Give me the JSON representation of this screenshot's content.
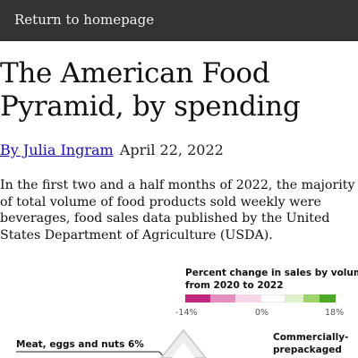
{
  "nav": {
    "return_label": "Return to homepage"
  },
  "article": {
    "title": "The American Food Pyramid, by spending",
    "byline_author": "By Julia Ingram",
    "date": "April 22, 2022",
    "lede": "In the first two and a half months of 2022, the majority of total volume of food products sold weekly were beverages, food sales data published by the United States Department of Agriculture (USDA)."
  },
  "legend": {
    "title_line1": "Percent change in sales by volume",
    "title_line2": "from 2020 to 2022",
    "colors": [
      "#c2277f",
      "#e48fc0",
      "#f6d6e8",
      "#ffffff",
      "#dff0cc",
      "#9fd46c",
      "#4daa24"
    ],
    "tick_min": "-14%",
    "tick_mid": "0%",
    "tick_max": "18%"
  },
  "pyramid": {
    "label_left": "Meat, eggs and nuts 6%",
    "label_right_line1": "Commercially-",
    "label_right_line2": "prepackaged"
  }
}
